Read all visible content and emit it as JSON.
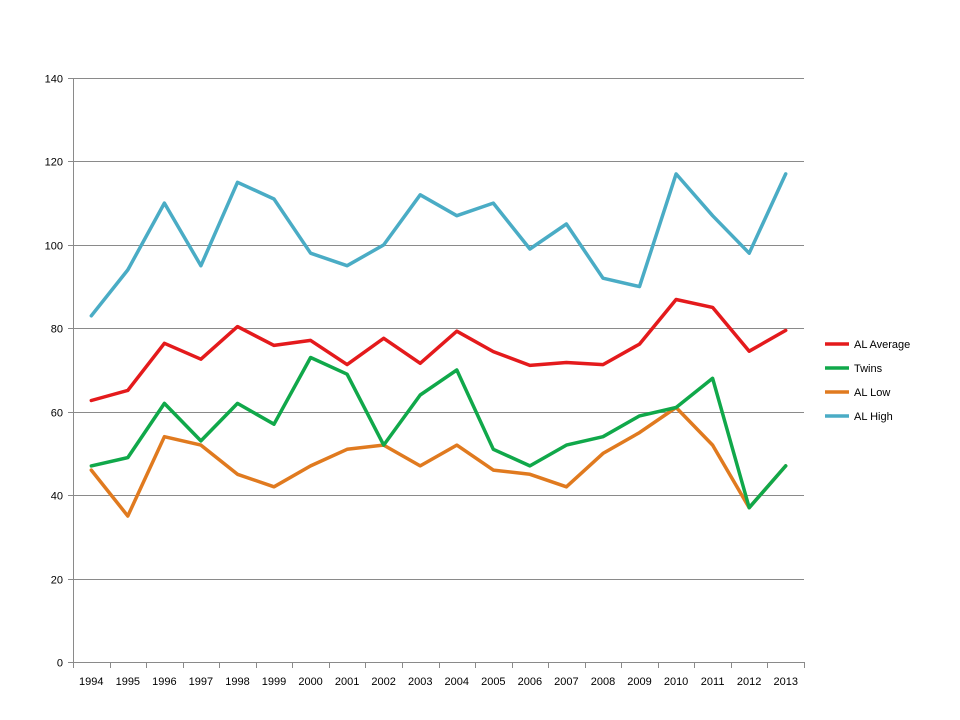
{
  "chart_data": {
    "type": "line",
    "title": "",
    "xlabel": "",
    "ylabel": "",
    "categories": [
      "1994",
      "1995",
      "1996",
      "1997",
      "1998",
      "1999",
      "2000",
      "2001",
      "2002",
      "2003",
      "2004",
      "2005",
      "2006",
      "2007",
      "2008",
      "2009",
      "2010",
      "2011",
      "2012",
      "2013"
    ],
    "ylim": [
      0,
      140
    ],
    "yticks": [
      0,
      20,
      40,
      60,
      80,
      100,
      120,
      140
    ],
    "grid": true,
    "legend_position": "right",
    "series": [
      {
        "name": "AL Average",
        "color": "#e41a1c",
        "values": [
          62.7,
          65.1,
          76.4,
          72.6,
          80.4,
          75.9,
          77.1,
          71.3,
          77.6,
          71.6,
          79.3,
          74.4,
          71.1,
          71.8,
          71.3,
          76.2,
          86.9,
          85.0,
          74.5,
          79.5
        ]
      },
      {
        "name": "Twins",
        "color": "#10a84a",
        "values": [
          47,
          49,
          62,
          53,
          62,
          57,
          73,
          69,
          52,
          64,
          70,
          51,
          47,
          52,
          54,
          59,
          61,
          68,
          37,
          47
        ]
      },
      {
        "name": "AL Low",
        "color": "#e07a1f",
        "values": [
          46,
          35,
          54,
          52,
          45,
          42,
          47,
          51,
          52,
          47,
          52,
          46,
          45,
          42,
          50,
          55,
          61,
          52,
          37,
          47
        ]
      },
      {
        "name": "AL High",
        "color": "#4aacc5",
        "values": [
          83,
          94,
          110,
          95,
          115,
          111,
          98,
          95,
          100,
          112,
          107,
          110,
          99,
          105,
          92,
          90,
          117,
          107,
          98,
          117
        ]
      }
    ]
  }
}
